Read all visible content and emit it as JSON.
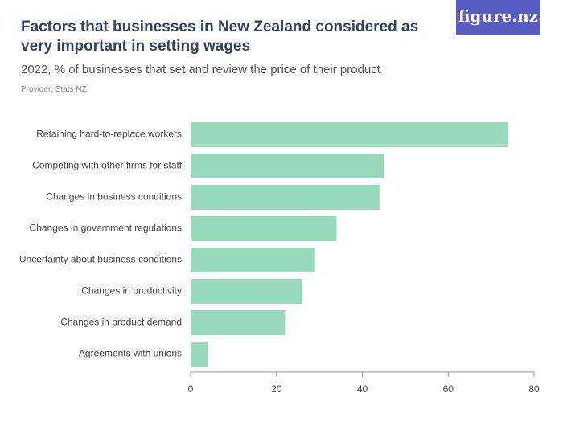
{
  "chart_data": {
    "type": "bar",
    "logo": "figure.nz",
    "title": "Factors that businesses in New Zealand considered as very important in setting wages",
    "subtitle": "2022, % of businesses that set and review the price of their product",
    "provider": "Provider: Stats NZ",
    "categories": [
      "Retaining hard-to-replace workers",
      "Competing with other firms for staff",
      "Changes in business conditions",
      "Changes in government regulations",
      "Uncertainty about business conditions",
      "Changes in productivity",
      "Changes in product demand",
      "Agreements with unions"
    ],
    "values": [
      74,
      45,
      44,
      34,
      29,
      26,
      22,
      4
    ],
    "color": "#98d9bb",
    "xlim": [
      0,
      80
    ],
    "xticks": [
      0,
      20,
      40,
      60,
      80
    ]
  }
}
